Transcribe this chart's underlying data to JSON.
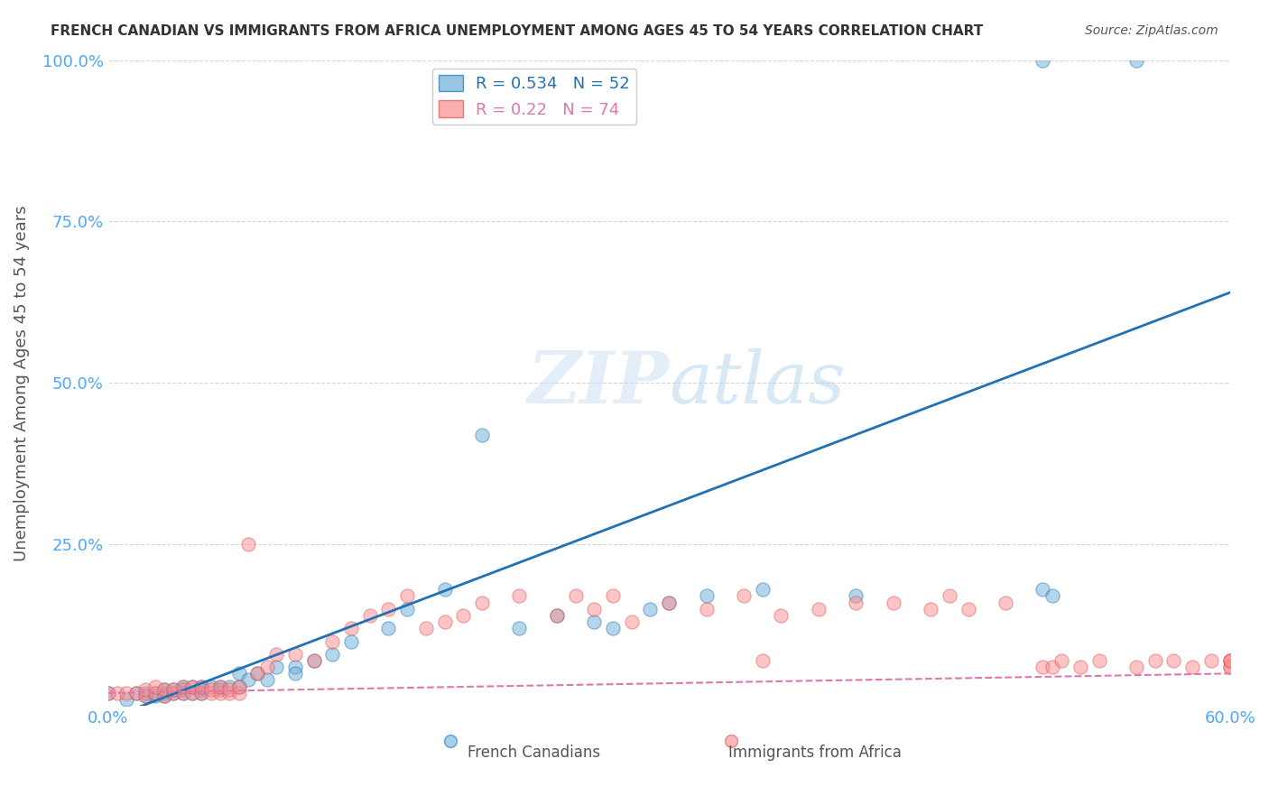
{
  "title": "FRENCH CANADIAN VS IMMIGRANTS FROM AFRICA UNEMPLOYMENT AMONG AGES 45 TO 54 YEARS CORRELATION CHART",
  "source": "Source: ZipAtlas.com",
  "ylabel": "Unemployment Among Ages 45 to 54 years",
  "xlabel": "",
  "xlim": [
    0,
    0.6
  ],
  "ylim": [
    0,
    1.0
  ],
  "xtick_labels": [
    "0.0%",
    "",
    "",
    "",
    "",
    "",
    "60.0%"
  ],
  "ytick_labels": [
    "",
    "25.0%",
    "50.0%",
    "75.0%",
    "100.0%"
  ],
  "blue_R": 0.534,
  "blue_N": 52,
  "pink_R": 0.22,
  "pink_N": 74,
  "blue_color": "#6baed6",
  "pink_color": "#fc8d8d",
  "blue_line_color": "#2171b5",
  "pink_line_color": "#de77ae",
  "pink_edge_color": "#e05050",
  "axis_color": "#4da6ff",
  "grid_color": "#cccccc",
  "background_color": "#ffffff",
  "watermark_zip": "ZIP",
  "watermark_atlas": "atlas",
  "legend_label_blue": "French Canadians",
  "legend_label_pink": "Immigrants from Africa",
  "blue_scatter_x": [
    0.0,
    0.01,
    0.015,
    0.02,
    0.02,
    0.025,
    0.025,
    0.03,
    0.03,
    0.03,
    0.035,
    0.035,
    0.04,
    0.04,
    0.04,
    0.045,
    0.045,
    0.05,
    0.05,
    0.05,
    0.055,
    0.06,
    0.06,
    0.065,
    0.07,
    0.07,
    0.075,
    0.08,
    0.085,
    0.09,
    0.1,
    0.1,
    0.11,
    0.12,
    0.13,
    0.15,
    0.16,
    0.18,
    0.2,
    0.22,
    0.24,
    0.26,
    0.27,
    0.29,
    0.3,
    0.32,
    0.35,
    0.4,
    0.5,
    0.505,
    0.5,
    0.55
  ],
  "blue_scatter_y": [
    0.02,
    0.01,
    0.02,
    0.015,
    0.02,
    0.015,
    0.02,
    0.015,
    0.02,
    0.025,
    0.02,
    0.025,
    0.02,
    0.03,
    0.025,
    0.02,
    0.03,
    0.02,
    0.03,
    0.025,
    0.03,
    0.025,
    0.03,
    0.03,
    0.03,
    0.05,
    0.04,
    0.05,
    0.04,
    0.06,
    0.06,
    0.05,
    0.07,
    0.08,
    0.1,
    0.12,
    0.15,
    0.18,
    0.42,
    0.12,
    0.14,
    0.13,
    0.12,
    0.15,
    0.16,
    0.17,
    0.18,
    0.17,
    0.18,
    0.17,
    1.0,
    1.0
  ],
  "pink_scatter_x": [
    0.0,
    0.005,
    0.01,
    0.015,
    0.02,
    0.02,
    0.025,
    0.025,
    0.03,
    0.03,
    0.035,
    0.035,
    0.04,
    0.04,
    0.045,
    0.045,
    0.05,
    0.05,
    0.055,
    0.055,
    0.06,
    0.06,
    0.065,
    0.065,
    0.07,
    0.07,
    0.075,
    0.08,
    0.085,
    0.09,
    0.1,
    0.11,
    0.12,
    0.13,
    0.14,
    0.15,
    0.16,
    0.17,
    0.18,
    0.19,
    0.2,
    0.22,
    0.24,
    0.25,
    0.26,
    0.27,
    0.28,
    0.3,
    0.32,
    0.34,
    0.35,
    0.36,
    0.38,
    0.4,
    0.42,
    0.44,
    0.45,
    0.46,
    0.48,
    0.5,
    0.505,
    0.51,
    0.52,
    0.53,
    0.55,
    0.56,
    0.57,
    0.58,
    0.59,
    0.6,
    0.6,
    0.6,
    0.6,
    0.6
  ],
  "pink_scatter_y": [
    0.02,
    0.02,
    0.02,
    0.02,
    0.015,
    0.025,
    0.02,
    0.03,
    0.015,
    0.025,
    0.02,
    0.025,
    0.02,
    0.03,
    0.02,
    0.03,
    0.02,
    0.03,
    0.02,
    0.025,
    0.02,
    0.03,
    0.02,
    0.025,
    0.02,
    0.03,
    0.25,
    0.05,
    0.06,
    0.08,
    0.08,
    0.07,
    0.1,
    0.12,
    0.14,
    0.15,
    0.17,
    0.12,
    0.13,
    0.14,
    0.16,
    0.17,
    0.14,
    0.17,
    0.15,
    0.17,
    0.13,
    0.16,
    0.15,
    0.17,
    0.07,
    0.14,
    0.15,
    0.16,
    0.16,
    0.15,
    0.17,
    0.15,
    0.16,
    0.06,
    0.06,
    0.07,
    0.06,
    0.07,
    0.06,
    0.07,
    0.07,
    0.06,
    0.07,
    0.06,
    0.07,
    0.07,
    0.06,
    0.07
  ],
  "blue_trend_x": [
    0.0,
    0.6
  ],
  "blue_trend_y_intercept": -0.02,
  "blue_trend_slope": 1.1,
  "pink_trend_x": [
    0.0,
    0.6
  ],
  "pink_trend_y_intercept": 0.02,
  "pink_trend_slope": 0.05
}
